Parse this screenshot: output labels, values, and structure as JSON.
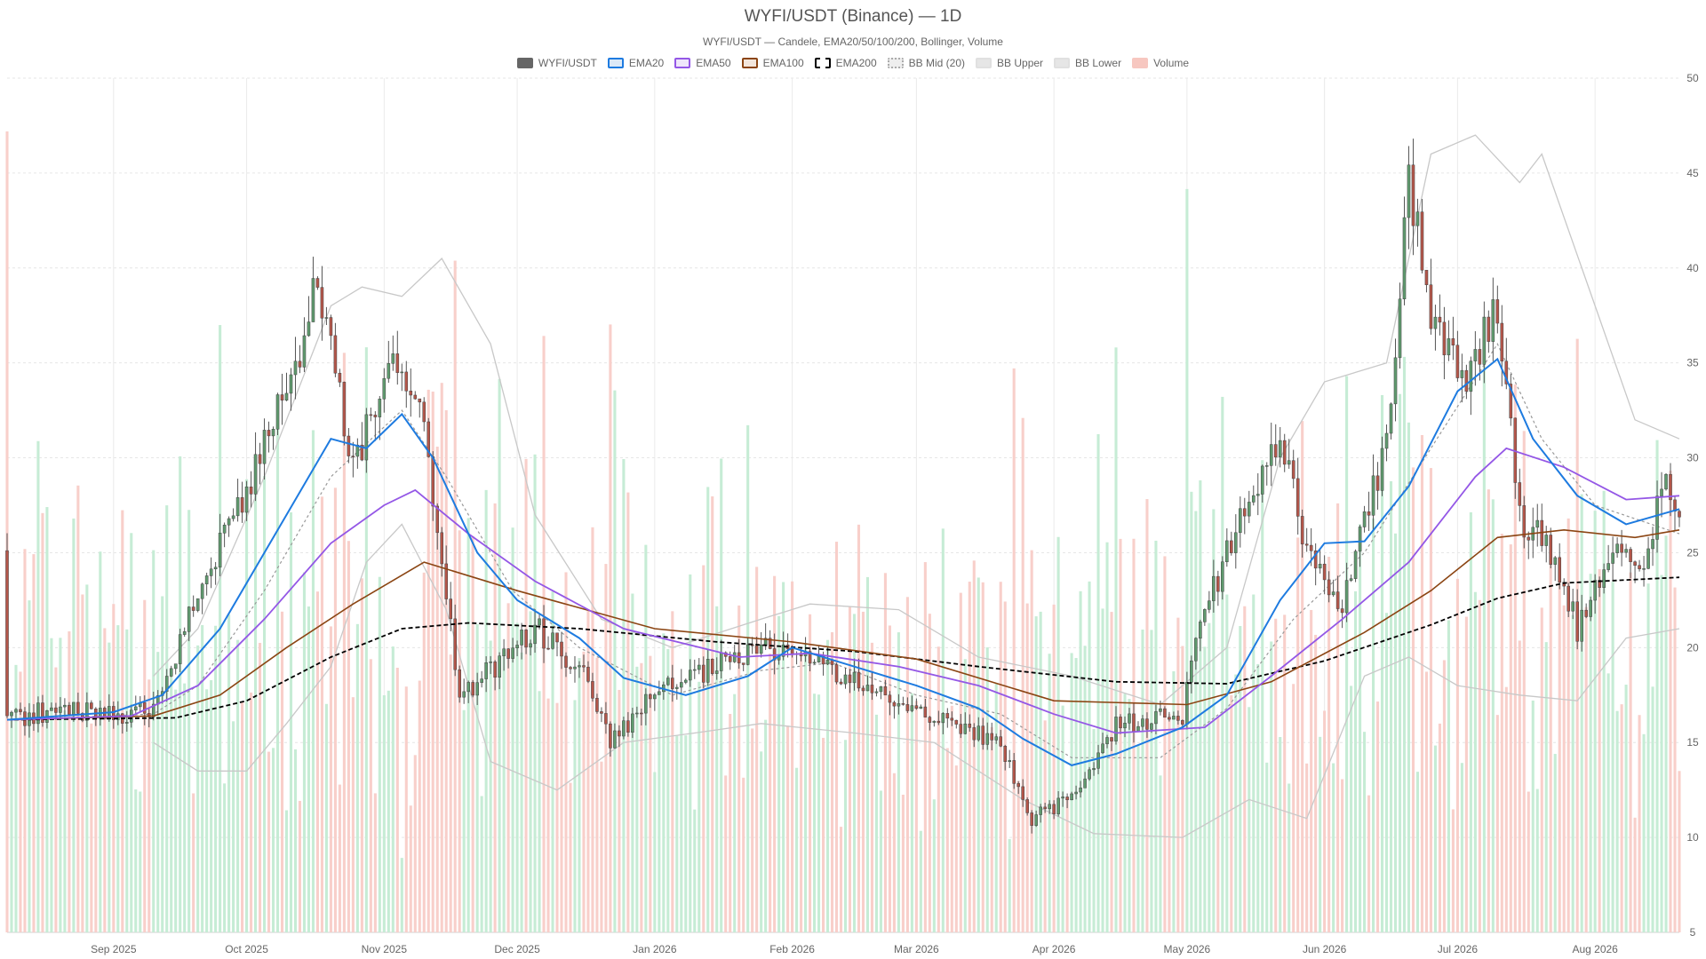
{
  "chart_data": {
    "type": "candlestick",
    "title": "WYFI/USDT (Binance) — 1D",
    "subtitle": "WYFI/USDT — Candele, EMA20/50/100/200, Bollinger, Volume",
    "ylim": [
      5,
      50
    ],
    "y_ticks": [
      5,
      10,
      15,
      20,
      25,
      30,
      35,
      40,
      45,
      50
    ],
    "x_range": [
      "2025-08-08",
      "2026-08-20"
    ],
    "x_ticks": [
      {
        "date": "2025-09-01",
        "label": "Sep 2025"
      },
      {
        "date": "2025-10-01",
        "label": "Oct 2025"
      },
      {
        "date": "2025-11-01",
        "label": "Nov 2025"
      },
      {
        "date": "2025-12-01",
        "label": "Dec 2025"
      },
      {
        "date": "2026-01-01",
        "label": "Jan 2026"
      },
      {
        "date": "2026-02-01",
        "label": "Feb 2026"
      },
      {
        "date": "2026-03-01",
        "label": "Mar 2026"
      },
      {
        "date": "2026-04-01",
        "label": "Apr 2026"
      },
      {
        "date": "2026-05-01",
        "label": "May 2026"
      },
      {
        "date": "2026-06-01",
        "label": "Jun 2026"
      },
      {
        "date": "2026-07-01",
        "label": "Jul 2026"
      },
      {
        "date": "2026-08-01",
        "label": "Aug 2026"
      }
    ],
    "grid": true,
    "legend_position": "top-center",
    "legend": [
      {
        "name": "WYFI/USDT",
        "style": "solid",
        "fill": "#666666",
        "stroke": "#666666"
      },
      {
        "name": "EMA20",
        "style": "solid",
        "fill": "#dce9f7",
        "stroke": "#1e7be0"
      },
      {
        "name": "EMA50",
        "style": "solid",
        "fill": "#efe6fb",
        "stroke": "#9457e6"
      },
      {
        "name": "EMA100",
        "style": "solid",
        "fill": "#f3e6dc",
        "stroke": "#8b4513"
      },
      {
        "name": "EMA200",
        "style": "dashed",
        "fill": "#ffffff",
        "stroke": "#000000"
      },
      {
        "name": "BB Mid (20)",
        "style": "dotted",
        "fill": "#eeeeee",
        "stroke": "#aaaaaa"
      },
      {
        "name": "BB Upper",
        "style": "solid",
        "fill": "#e6e6e6",
        "stroke": "#e0e0e0"
      },
      {
        "name": "BB Lower",
        "style": "solid",
        "fill": "#e6e6e6",
        "stroke": "#e0e0e0"
      },
      {
        "name": "Volume",
        "style": "solid",
        "fill": "#f7c7c0",
        "stroke": "#f7c7c0"
      }
    ],
    "colors": {
      "up": "#5f9a6e",
      "down": "#b3564a",
      "vol_up": "#c6ecd5",
      "vol_down": "#f8cfca",
      "ema20": "#1e7be0",
      "ema50": "#9457e6",
      "ema100": "#8b4513",
      "ema200": "#000000",
      "bb_mid": "#999999",
      "bb_band": "#c8c8c8"
    },
    "candle_anchors": [
      [
        "2025-08-08",
        16.2
      ],
      [
        "2025-08-20",
        16.8
      ],
      [
        "2025-09-01",
        16.4
      ],
      [
        "2025-09-10",
        17.0
      ],
      [
        "2025-09-20",
        22.5
      ],
      [
        "2025-10-01",
        28.5
      ],
      [
        "2025-10-10",
        33.5
      ],
      [
        "2025-10-17",
        39.0
      ],
      [
        "2025-10-25",
        29.5
      ],
      [
        "2025-11-03",
        36.0
      ],
      [
        "2025-11-10",
        31.5
      ],
      [
        "2025-11-18",
        17.5
      ],
      [
        "2025-11-25",
        18.8
      ],
      [
        "2025-12-05",
        21.0
      ],
      [
        "2025-12-15",
        19.0
      ],
      [
        "2025-12-22",
        15.0
      ],
      [
        "2026-01-01",
        17.5
      ],
      [
        "2026-01-15",
        19.0
      ],
      [
        "2026-01-27",
        20.0
      ],
      [
        "2026-02-05",
        19.5
      ],
      [
        "2026-02-20",
        17.5
      ],
      [
        "2026-03-05",
        16.5
      ],
      [
        "2026-03-20",
        14.8
      ],
      [
        "2026-03-27",
        11.0
      ],
      [
        "2026-04-05",
        12.0
      ],
      [
        "2026-04-15",
        16.0
      ],
      [
        "2026-04-30",
        16.5
      ],
      [
        "2026-05-05",
        22.0
      ],
      [
        "2026-05-12",
        26.0
      ],
      [
        "2026-05-22",
        31.0
      ],
      [
        "2026-05-28",
        25.0
      ],
      [
        "2026-06-05",
        22.5
      ],
      [
        "2026-06-15",
        31.0
      ],
      [
        "2026-06-20",
        44.5
      ],
      [
        "2026-06-25",
        38.0
      ],
      [
        "2026-07-02",
        34.0
      ],
      [
        "2026-07-10",
        38.0
      ],
      [
        "2026-07-15",
        27.0
      ],
      [
        "2026-07-22",
        25.0
      ],
      [
        "2026-07-28",
        21.0
      ],
      [
        "2026-08-05",
        25.0
      ],
      [
        "2026-08-12",
        24.5
      ],
      [
        "2026-08-17",
        29.0
      ],
      [
        "2026-08-20",
        27.0
      ]
    ],
    "ema20": [
      [
        "2025-08-08",
        16.2
      ],
      [
        "2025-09-01",
        16.6
      ],
      [
        "2025-09-12",
        17.5
      ],
      [
        "2025-09-25",
        21.0
      ],
      [
        "2025-10-10",
        27.0
      ],
      [
        "2025-10-20",
        31.0
      ],
      [
        "2025-10-28",
        30.5
      ],
      [
        "2025-11-05",
        32.3
      ],
      [
        "2025-11-12",
        30.0
      ],
      [
        "2025-11-22",
        25.0
      ],
      [
        "2025-12-01",
        22.5
      ],
      [
        "2025-12-15",
        20.5
      ],
      [
        "2025-12-25",
        18.4
      ],
      [
        "2026-01-08",
        17.5
      ],
      [
        "2026-01-22",
        18.5
      ],
      [
        "2026-02-01",
        20.0
      ],
      [
        "2026-02-15",
        19.0
      ],
      [
        "2026-03-01",
        18.0
      ],
      [
        "2026-03-15",
        16.8
      ],
      [
        "2026-03-25",
        15.2
      ],
      [
        "2026-04-05",
        13.8
      ],
      [
        "2026-04-15",
        14.4
      ],
      [
        "2026-04-30",
        15.8
      ],
      [
        "2026-05-10",
        17.5
      ],
      [
        "2026-05-22",
        22.5
      ],
      [
        "2026-06-01",
        25.5
      ],
      [
        "2026-06-10",
        25.6
      ],
      [
        "2026-06-20",
        28.5
      ],
      [
        "2026-07-01",
        33.5
      ],
      [
        "2026-07-10",
        35.2
      ],
      [
        "2026-07-18",
        31.0
      ],
      [
        "2026-07-28",
        28.0
      ],
      [
        "2026-08-08",
        26.5
      ],
      [
        "2026-08-20",
        27.3
      ]
    ],
    "ema50": [
      [
        "2025-08-08",
        16.2
      ],
      [
        "2025-09-05",
        16.4
      ],
      [
        "2025-09-20",
        18.0
      ],
      [
        "2025-10-05",
        21.5
      ],
      [
        "2025-10-20",
        25.5
      ],
      [
        "2025-11-01",
        27.5
      ],
      [
        "2025-11-08",
        28.3
      ],
      [
        "2025-11-20",
        26.0
      ],
      [
        "2025-12-05",
        23.5
      ],
      [
        "2025-12-25",
        21.0
      ],
      [
        "2026-01-20",
        19.5
      ],
      [
        "2026-02-05",
        19.7
      ],
      [
        "2026-02-25",
        19.0
      ],
      [
        "2026-03-15",
        18.0
      ],
      [
        "2026-04-01",
        16.5
      ],
      [
        "2026-04-15",
        15.5
      ],
      [
        "2026-05-05",
        15.8
      ],
      [
        "2026-05-20",
        18.5
      ],
      [
        "2026-06-05",
        21.5
      ],
      [
        "2026-06-20",
        24.5
      ],
      [
        "2026-07-05",
        29.0
      ],
      [
        "2026-07-12",
        30.5
      ],
      [
        "2026-07-25",
        29.5
      ],
      [
        "2026-08-08",
        27.8
      ],
      [
        "2026-08-20",
        28.0
      ]
    ],
    "ema100": [
      [
        "2025-08-08",
        16.2
      ],
      [
        "2025-09-10",
        16.4
      ],
      [
        "2025-09-25",
        17.5
      ],
      [
        "2025-10-10",
        20.0
      ],
      [
        "2025-10-25",
        22.3
      ],
      [
        "2025-11-10",
        24.5
      ],
      [
        "2025-12-01",
        23.0
      ],
      [
        "2026-01-01",
        21.0
      ],
      [
        "2026-02-01",
        20.3
      ],
      [
        "2026-03-01",
        19.4
      ],
      [
        "2026-04-01",
        17.2
      ],
      [
        "2026-05-01",
        17.0
      ],
      [
        "2026-05-20",
        18.2
      ],
      [
        "2026-06-10",
        20.8
      ],
      [
        "2026-06-25",
        23.0
      ],
      [
        "2026-07-10",
        25.8
      ],
      [
        "2026-07-25",
        26.2
      ],
      [
        "2026-08-10",
        25.8
      ],
      [
        "2026-08-20",
        26.2
      ]
    ],
    "ema200": [
      [
        "2025-08-08",
        16.2
      ],
      [
        "2025-09-15",
        16.3
      ],
      [
        "2025-10-01",
        17.2
      ],
      [
        "2025-10-20",
        19.5
      ],
      [
        "2025-11-05",
        21.0
      ],
      [
        "2025-11-20",
        21.3
      ],
      [
        "2025-12-15",
        21.0
      ],
      [
        "2026-01-15",
        20.3
      ],
      [
        "2026-02-15",
        19.8
      ],
      [
        "2026-03-15",
        19.0
      ],
      [
        "2026-04-15",
        18.2
      ],
      [
        "2026-05-10",
        18.1
      ],
      [
        "2026-06-01",
        19.3
      ],
      [
        "2026-06-25",
        21.2
      ],
      [
        "2026-07-10",
        22.6
      ],
      [
        "2026-07-25",
        23.4
      ],
      [
        "2026-08-20",
        23.7
      ]
    ],
    "bb_mid": [
      [
        "2025-08-08",
        16.2
      ],
      [
        "2025-09-10",
        16.5
      ],
      [
        "2025-09-20",
        18.0
      ],
      [
        "2025-10-05",
        23.0
      ],
      [
        "2025-10-20",
        29.0
      ],
      [
        "2025-11-05",
        32.5
      ],
      [
        "2025-11-15",
        29.0
      ],
      [
        "2025-11-30",
        23.0
      ],
      [
        "2025-12-15",
        20.0
      ],
      [
        "2026-01-05",
        17.5
      ],
      [
        "2026-01-25",
        18.8
      ],
      [
        "2026-02-10",
        19.2
      ],
      [
        "2026-03-01",
        17.5
      ],
      [
        "2026-03-20",
        16.5
      ],
      [
        "2026-04-05",
        14.2
      ],
      [
        "2026-04-25",
        14.2
      ],
      [
        "2026-05-10",
        16.8
      ],
      [
        "2026-05-25",
        21.5
      ],
      [
        "2026-06-10",
        25.0
      ],
      [
        "2026-06-25",
        30.5
      ],
      [
        "2026-07-10",
        36.0
      ],
      [
        "2026-07-20",
        31.0
      ],
      [
        "2026-08-01",
        27.5
      ],
      [
        "2026-08-20",
        26.0
      ]
    ],
    "bb_upper": [
      [
        "2025-09-10",
        18.5
      ],
      [
        "2025-09-20",
        21.0
      ],
      [
        "2025-10-05",
        29.0
      ],
      [
        "2025-10-20",
        38.0
      ],
      [
        "2025-10-27",
        39.0
      ],
      [
        "2025-11-05",
        38.5
      ],
      [
        "2025-11-14",
        40.5
      ],
      [
        "2025-11-25",
        36.0
      ],
      [
        "2025-12-05",
        27.0
      ],
      [
        "2025-12-20",
        21.5
      ],
      [
        "2026-01-05",
        20.0
      ],
      [
        "2026-01-25",
        21.5
      ],
      [
        "2026-02-05",
        22.3
      ],
      [
        "2026-02-25",
        22.0
      ],
      [
        "2026-03-15",
        19.5
      ],
      [
        "2026-04-05",
        18.5
      ],
      [
        "2026-04-25",
        17.0
      ],
      [
        "2026-05-10",
        20.0
      ],
      [
        "2026-05-22",
        30.0
      ],
      [
        "2026-06-01",
        34.0
      ],
      [
        "2026-06-15",
        35.0
      ],
      [
        "2026-06-25",
        46.0
      ],
      [
        "2026-07-05",
        47.0
      ],
      [
        "2026-07-15",
        44.5
      ],
      [
        "2026-07-20",
        46.0
      ],
      [
        "2026-08-01",
        38.0
      ],
      [
        "2026-08-10",
        32.0
      ],
      [
        "2026-08-20",
        31.0
      ]
    ],
    "bb_lower": [
      [
        "2025-09-10",
        15.0
      ],
      [
        "2025-09-20",
        13.5
      ],
      [
        "2025-10-01",
        13.5
      ],
      [
        "2025-10-10",
        16.0
      ],
      [
        "2025-10-20",
        19.0
      ],
      [
        "2025-10-28",
        24.5
      ],
      [
        "2025-11-05",
        26.5
      ],
      [
        "2025-11-15",
        22.0
      ],
      [
        "2025-11-25",
        14.0
      ],
      [
        "2025-12-10",
        12.5
      ],
      [
        "2025-12-25",
        15.0
      ],
      [
        "2026-01-10",
        15.5
      ],
      [
        "2026-01-25",
        16.0
      ],
      [
        "2026-02-15",
        15.5
      ],
      [
        "2026-03-05",
        15.0
      ],
      [
        "2026-03-25",
        12.0
      ],
      [
        "2026-04-10",
        10.2
      ],
      [
        "2026-04-30",
        10.0
      ],
      [
        "2026-05-15",
        12.0
      ],
      [
        "2026-05-28",
        11.0
      ],
      [
        "2026-06-10",
        18.5
      ],
      [
        "2026-06-20",
        19.5
      ],
      [
        "2026-07-01",
        18.0
      ],
      [
        "2026-07-15",
        17.5
      ],
      [
        "2026-07-28",
        17.2
      ],
      [
        "2026-08-08",
        20.5
      ],
      [
        "2026-08-20",
        21.0
      ]
    ]
  }
}
